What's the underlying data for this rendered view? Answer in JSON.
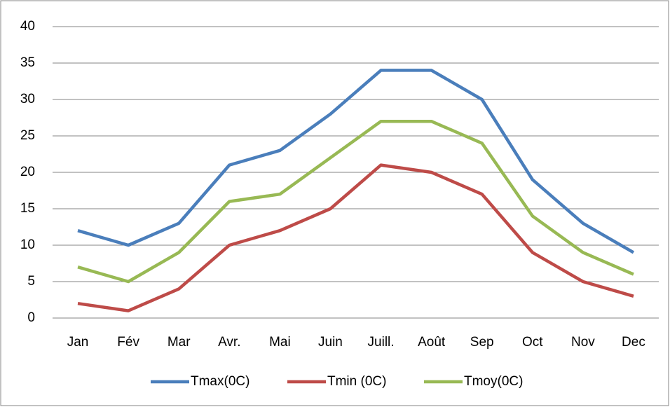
{
  "chart_data": {
    "type": "line",
    "categories": [
      "Jan",
      "Fév",
      "Mar",
      "Avr.",
      "Mai",
      "Juin",
      "Juill.",
      "Août",
      "Sep",
      "Oct",
      "Nov",
      "Dec"
    ],
    "series": [
      {
        "name": "Tmax(0C)",
        "color": "#4a7ebb",
        "values": [
          12,
          10,
          13,
          21,
          23,
          28,
          34,
          34,
          30,
          19,
          13,
          9
        ]
      },
      {
        "name": "Tmin (0C)",
        "color": "#be4b48",
        "values": [
          2,
          1,
          4,
          10,
          12,
          15,
          21,
          20,
          17,
          9,
          5,
          3
        ]
      },
      {
        "name": "Tmoy(0C)",
        "color": "#98b954",
        "values": [
          7,
          5,
          9,
          16,
          17,
          22,
          27,
          27,
          24,
          14,
          9,
          6
        ]
      }
    ],
    "ylim": [
      0,
      40
    ],
    "yticks": [
      0,
      5,
      10,
      15,
      20,
      25,
      30,
      35,
      40
    ],
    "grid": true,
    "legend": "bottom"
  }
}
